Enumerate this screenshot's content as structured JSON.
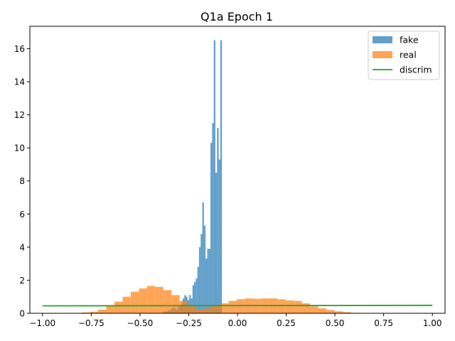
{
  "chart_data": {
    "type": "bar",
    "title": "Q1a Epoch 1",
    "xlabel": "",
    "ylabel": "",
    "xlim": [
      -1.065,
      1.065
    ],
    "ylim": [
      0,
      17.35
    ],
    "xticks": [
      -1.0,
      -0.75,
      -0.5,
      -0.25,
      0.0,
      0.25,
      0.5,
      0.75,
      1.0
    ],
    "xtick_labels": [
      "−1.00",
      "−0.75",
      "−0.50",
      "−0.25",
      "0.00",
      "0.25",
      "0.50",
      "0.75",
      "1.00"
    ],
    "yticks": [
      0,
      2,
      4,
      6,
      8,
      10,
      12,
      14,
      16
    ],
    "ytick_labels": [
      "0",
      "2",
      "4",
      "6",
      "8",
      "10",
      "12",
      "14",
      "16"
    ],
    "grid": false,
    "legend": {
      "placement": "top-right"
    },
    "series": [
      {
        "name": "fake",
        "kind": "histogram",
        "color": "#1f77b4",
        "opacity": 0.7,
        "bin_width": 0.0084,
        "bins_start": -0.382,
        "values": [
          0.1,
          0.15,
          0.1,
          0.2,
          0.2,
          0.3,
          0.4,
          0.3,
          0.2,
          0.4,
          0.5,
          0.6,
          0.9,
          1.1,
          1.0,
          0.8,
          1.1,
          0.9,
          1.7,
          1.9,
          2.1,
          2.8,
          4.0,
          4.8,
          6.7,
          5.3,
          3.3,
          3.9,
          3.9,
          10.3,
          11.5,
          16.5,
          8.5,
          11.2,
          9.3,
          16.5
        ]
      },
      {
        "name": "real",
        "kind": "histogram",
        "color": "#ff7f0e",
        "opacity": 0.7,
        "bin_width": 0.0418,
        "bins_start": -0.84,
        "values": [
          0.02,
          0.05,
          0.1,
          0.22,
          0.45,
          0.7,
          1.0,
          1.3,
          1.5,
          1.65,
          1.6,
          1.4,
          1.1,
          0.75,
          0.45,
          0.25,
          0.3,
          0.45,
          0.6,
          0.75,
          0.85,
          0.9,
          0.88,
          0.9,
          0.9,
          0.85,
          0.78,
          0.75,
          0.6,
          0.42,
          0.3,
          0.2,
          0.12,
          0.07,
          0.03
        ]
      },
      {
        "name": "discrim",
        "kind": "line",
        "color": "#2ca02c",
        "x": [
          -1.0,
          1.0
        ],
        "y": [
          0.45,
          0.48
        ]
      }
    ]
  }
}
